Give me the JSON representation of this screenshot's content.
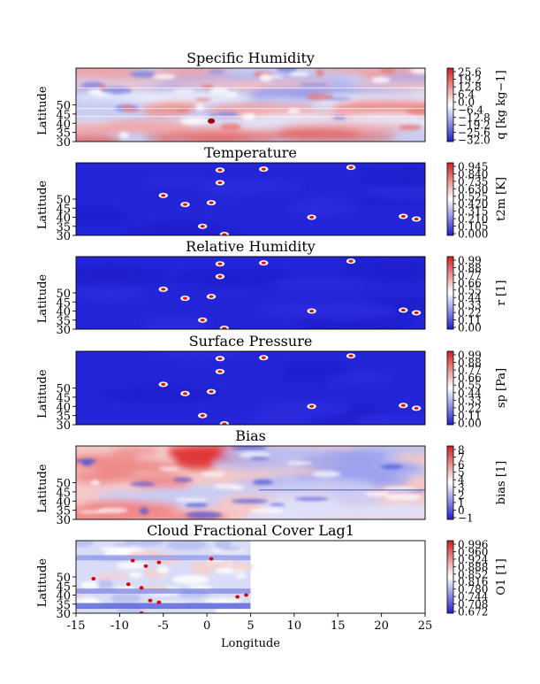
{
  "chart_data": [
    {
      "type": "heatmap",
      "title": "Specific Humidity",
      "ylabel": "Latitude",
      "colorbar_label": "q [kg kg−1]",
      "colorbar_ticks": [
        "25.6",
        "19.2",
        "12.8",
        "6.4",
        "0.0",
        "−6.4",
        "−12.8",
        "−19.2",
        "−25.6",
        "−32.0"
      ],
      "ytick_labels": [
        "30",
        "35",
        "40",
        "45",
        "50"
      ],
      "pattern": "bands",
      "grid": false
    },
    {
      "type": "heatmap",
      "title": "Temperature",
      "ylabel": "Latitude",
      "colorbar_label": "t2m [K]",
      "colorbar_ticks": [
        "0.945",
        "0.840",
        "0.735",
        "0.630",
        "0.525",
        "0.420",
        "0.315",
        "0.210",
        "0.105",
        "0.000"
      ],
      "ytick_labels": [
        "30",
        "35",
        "40",
        "45",
        "50"
      ],
      "pattern": "points",
      "grid": false
    },
    {
      "type": "heatmap",
      "title": "Relative Humidity",
      "ylabel": "Latitude",
      "colorbar_label": "r [1]",
      "colorbar_ticks": [
        "0.99",
        "0.88",
        "0.77",
        "0.66",
        "0.55",
        "0.44",
        "0.33",
        "0.22",
        "0.11",
        "0.00"
      ],
      "ytick_labels": [
        "30",
        "35",
        "40",
        "45",
        "50"
      ],
      "pattern": "points",
      "grid": false
    },
    {
      "type": "heatmap",
      "title": "Surface Pressure",
      "ylabel": "Latitude",
      "colorbar_label": "sp [Pa]",
      "colorbar_ticks": [
        "0.99",
        "0.88",
        "0.77",
        "0.66",
        "0.55",
        "0.44",
        "0.33",
        "0.22",
        "0.11",
        "0.00"
      ],
      "ytick_labels": [
        "30",
        "35",
        "40",
        "45",
        "50"
      ],
      "pattern": "points",
      "grid": false
    },
    {
      "type": "heatmap",
      "title": "Bias",
      "ylabel": "Latitude",
      "colorbar_label": "bias [1]",
      "colorbar_ticks": [
        "8",
        "7",
        "6",
        "5",
        "4",
        "3",
        "2",
        "1",
        "0",
        "−1"
      ],
      "ytick_labels": [
        "30",
        "35",
        "40",
        "45",
        "50"
      ],
      "pattern": "bias",
      "grid": false
    },
    {
      "type": "heatmap",
      "title": "Cloud Fractional Cover Lag1",
      "ylabel": "Latitude",
      "xlabel": "Longitude",
      "colorbar_label": "O1 [1]",
      "colorbar_ticks": [
        "0.996",
        "0.960",
        "0.924",
        "0.888",
        "0.852",
        "0.816",
        "0.780",
        "0.744",
        "0.708",
        "0.672"
      ],
      "ytick_labels": [
        "30",
        "35",
        "40",
        "45",
        "50"
      ],
      "xtick_labels": [
        "-15",
        "-10",
        "-5",
        "0",
        "5",
        "10",
        "15",
        "20",
        "25"
      ],
      "xlim": [
        -15,
        25
      ],
      "data_extent_x": [
        -15,
        5
      ],
      "pattern": "cloud",
      "grid": false
    }
  ],
  "station_points": [
    {
      "lon": 1.5,
      "lat": 66
    },
    {
      "lon": 6.5,
      "lat": 66.5
    },
    {
      "lon": 16.5,
      "lat": 67.5
    },
    {
      "lon": 1.5,
      "lat": 59
    },
    {
      "lon": -5.0,
      "lat": 52
    },
    {
      "lon": 0.5,
      "lat": 48
    },
    {
      "lon": -2.5,
      "lat": 47
    },
    {
      "lon": 12.0,
      "lat": 40
    },
    {
      "lon": 22.5,
      "lat": 40.5
    },
    {
      "lon": 24.0,
      "lat": 39
    },
    {
      "lon": -0.5,
      "lat": 35
    },
    {
      "lon": 2.0,
      "lat": 30.5
    }
  ],
  "cloud_points": [
    {
      "lon": -8.5,
      "lat": 59
    },
    {
      "lon": -5.5,
      "lat": 58
    },
    {
      "lon": 0.5,
      "lat": 60
    },
    {
      "lon": -7.0,
      "lat": 56
    },
    {
      "lon": -13.0,
      "lat": 49
    },
    {
      "lon": -9.0,
      "lat": 46
    },
    {
      "lon": -7.5,
      "lat": 44
    },
    {
      "lon": -6.5,
      "lat": 37
    },
    {
      "lon": -5.5,
      "lat": 36
    },
    {
      "lon": 3.5,
      "lat": 39
    },
    {
      "lon": 4.5,
      "lat": 40
    },
    {
      "lon": -7.5,
      "lat": 30
    }
  ]
}
